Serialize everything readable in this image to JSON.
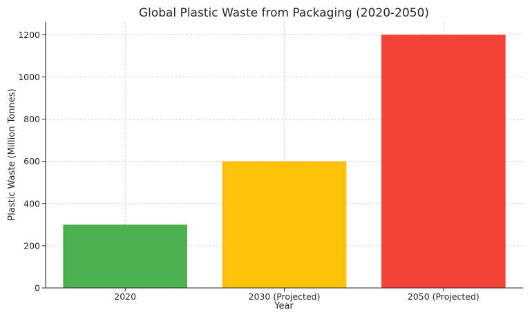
{
  "chart_data": {
    "type": "bar",
    "title": "Global Plastic Waste from Packaging (2020-2050)",
    "xlabel": "Year",
    "ylabel": "Plastic Waste (Million Tonnes)",
    "categories": [
      "2020",
      "2030 (Projected)",
      "2050 (Projected)"
    ],
    "values": [
      300,
      600,
      1200
    ],
    "colors": [
      "#4caf50",
      "#ffc107",
      "#f44336"
    ],
    "ylim": [
      0,
      1260
    ],
    "yticks": [
      0,
      200,
      400,
      600,
      800,
      1000,
      1200
    ],
    "grid": true
  }
}
